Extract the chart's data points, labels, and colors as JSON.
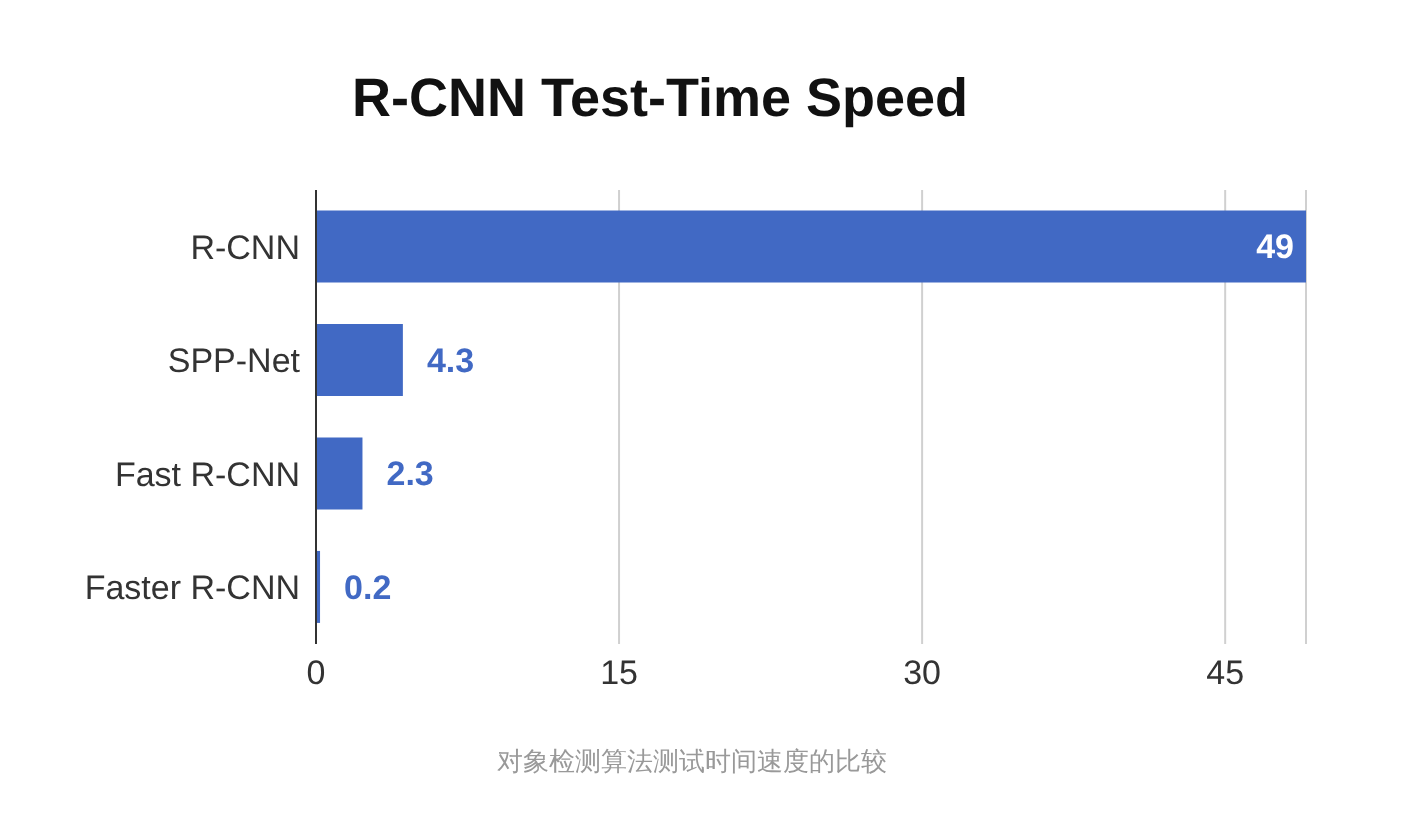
{
  "chart_data": {
    "type": "bar",
    "orientation": "horizontal",
    "title": "R-CNN Test-Time Speed",
    "categories": [
      "R-CNN",
      "SPP-Net",
      "Fast R-CNN",
      "Faster R-CNN"
    ],
    "values": [
      49,
      4.3,
      2.3,
      0.2
    ],
    "color": "#4169c4",
    "xlim": [
      0,
      49
    ],
    "xticks": [
      0,
      15,
      30,
      45
    ],
    "grid": "x",
    "data_labels": true,
    "annotations": [
      "对象检测算法测试时间速度的比较"
    ]
  }
}
